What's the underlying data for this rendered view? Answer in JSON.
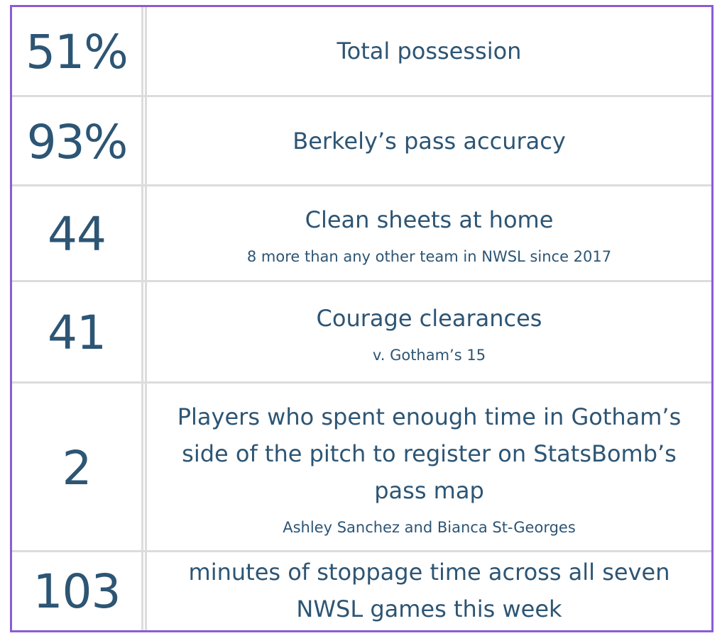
{
  "stats": [
    {
      "value": "51%",
      "label": "Total possession",
      "note": ""
    },
    {
      "value": "93%",
      "label": "Berkely’s pass accuracy",
      "note": ""
    },
    {
      "value": "44",
      "label": "Clean sheets at home",
      "note": "8 more than any other team in NWSL since 2017"
    },
    {
      "value": "41",
      "label": "Courage clearances",
      "note": "v. Gotham’s 15"
    },
    {
      "value": "2",
      "label": "Players who spent enough time in Gotham’s side of the pitch to register on StatsBomb’s pass map",
      "note": "Ashley Sanchez and Bianca St-Georges"
    },
    {
      "value": "103",
      "label": "minutes of stoppage time across all seven NWSL games this week",
      "note": ""
    }
  ],
  "colors": {
    "text": "#2d5574",
    "border": "#8a5cd6",
    "divider": "#dcdcdc"
  }
}
